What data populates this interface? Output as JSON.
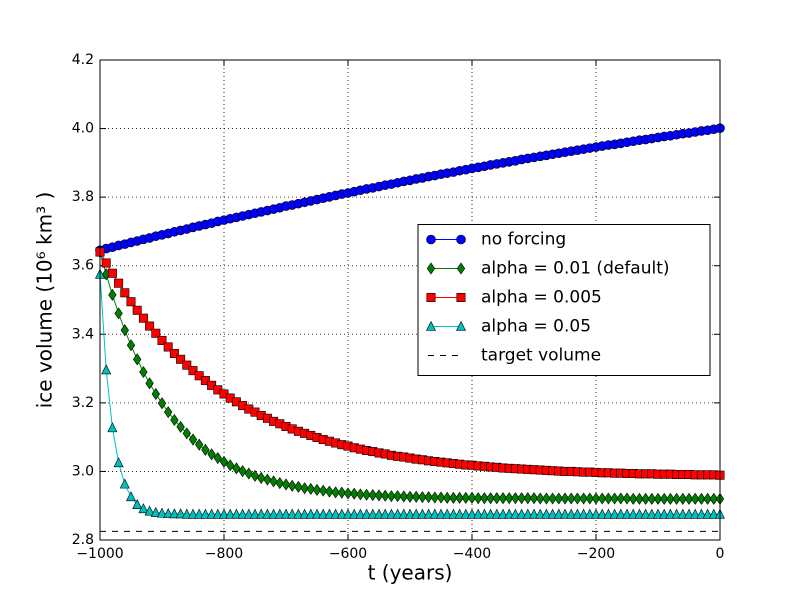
{
  "chart_data": {
    "type": "line",
    "xlabel": "t (years)",
    "ylabel": "ice volume (10⁶  km³ )",
    "xlim": [
      -1000,
      0
    ],
    "ylim": [
      2.8,
      4.2
    ],
    "xticks": [
      {
        "value": -1000,
        "label": "−1000"
      },
      {
        "value": -800,
        "label": "−800"
      },
      {
        "value": -600,
        "label": "−600"
      },
      {
        "value": -400,
        "label": "−400"
      },
      {
        "value": -200,
        "label": "−200"
      },
      0
    ],
    "yticks": [
      2.8,
      {
        "value": 3.0,
        "label": "3.0"
      },
      3.2,
      3.4,
      3.6,
      3.8,
      {
        "value": 4.0,
        "label": "4.0"
      },
      4.2
    ],
    "grid": true,
    "legend": "center right",
    "x": [
      -1000,
      -990,
      -980,
      -970,
      -960,
      -950,
      -940,
      -930,
      -920,
      -910,
      -900,
      -890,
      -880,
      -870,
      -860,
      -850,
      -840,
      -830,
      -820,
      -810,
      -800,
      -790,
      -780,
      -770,
      -760,
      -750,
      -740,
      -730,
      -720,
      -710,
      -700,
      -690,
      -680,
      -670,
      -660,
      -650,
      -640,
      -630,
      -620,
      -610,
      -600,
      -590,
      -580,
      -570,
      -560,
      -550,
      -540,
      -530,
      -520,
      -510,
      -500,
      -490,
      -480,
      -470,
      -460,
      -450,
      -440,
      -430,
      -420,
      -410,
      -400,
      -390,
      -380,
      -370,
      -360,
      -350,
      -340,
      -330,
      -320,
      -310,
      -300,
      -290,
      -280,
      -270,
      -260,
      -250,
      -240,
      -230,
      -220,
      -210,
      -200,
      -190,
      -180,
      -170,
      -160,
      -150,
      -140,
      -130,
      -120,
      -110,
      -100,
      -90,
      -80,
      -70,
      -60,
      -50,
      -40,
      -30,
      -20,
      -10,
      0
    ],
    "series": [
      {
        "name": "no forcing",
        "color": "#0000ff",
        "marker": "o",
        "linestyle": "solid",
        "values": [
          3.645,
          3.65,
          3.654,
          3.659,
          3.663,
          3.668,
          3.672,
          3.677,
          3.681,
          3.686,
          3.69,
          3.694,
          3.699,
          3.703,
          3.707,
          3.712,
          3.716,
          3.72,
          3.724,
          3.729,
          3.733,
          3.737,
          3.741,
          3.745,
          3.749,
          3.753,
          3.757,
          3.761,
          3.765,
          3.769,
          3.774,
          3.777,
          3.781,
          3.785,
          3.789,
          3.793,
          3.797,
          3.801,
          3.805,
          3.809,
          3.812,
          3.816,
          3.82,
          3.824,
          3.827,
          3.831,
          3.835,
          3.838,
          3.842,
          3.846,
          3.849,
          3.853,
          3.856,
          3.86,
          3.863,
          3.867,
          3.87,
          3.873,
          3.877,
          3.88,
          3.884,
          3.887,
          3.89,
          3.894,
          3.897,
          3.9,
          3.903,
          3.906,
          3.91,
          3.913,
          3.916,
          3.919,
          3.922,
          3.925,
          3.928,
          3.931,
          3.934,
          3.937,
          3.94,
          3.943,
          3.946,
          3.949,
          3.952,
          3.954,
          3.957,
          3.96,
          3.963,
          3.966,
          3.968,
          3.971,
          3.974,
          3.977,
          3.979,
          3.982,
          3.985,
          3.987,
          3.99,
          3.993,
          3.995,
          3.998,
          4.001
        ]
      },
      {
        "name": "alpha = 0.01 (default)",
        "color": "#008000",
        "marker": "D",
        "linestyle": "solid",
        "values": [
          3.64,
          3.575,
          3.515,
          3.461,
          3.412,
          3.368,
          3.327,
          3.29,
          3.257,
          3.226,
          3.199,
          3.173,
          3.15,
          3.13,
          3.111,
          3.093,
          3.078,
          3.063,
          3.05,
          3.039,
          3.028,
          3.018,
          3.009,
          3.001,
          2.994,
          2.987,
          2.981,
          2.976,
          2.971,
          2.966,
          2.962,
          2.958,
          2.955,
          2.951,
          2.949,
          2.946,
          2.944,
          2.941,
          2.939,
          2.938,
          2.936,
          2.935,
          2.933,
          2.932,
          2.931,
          2.93,
          2.929,
          2.928,
          2.928,
          2.927,
          2.926,
          2.926,
          2.925,
          2.925,
          2.924,
          2.924,
          2.923,
          2.923,
          2.923,
          2.923,
          2.923,
          2.922,
          2.922,
          2.922,
          2.922,
          2.922,
          2.922,
          2.922,
          2.922,
          2.922,
          2.922,
          2.921,
          2.921,
          2.921,
          2.921,
          2.921,
          2.921,
          2.921,
          2.921,
          2.921,
          2.921,
          2.921,
          2.921,
          2.921,
          2.921,
          2.921,
          2.92,
          2.92,
          2.92,
          2.92,
          2.92,
          2.92,
          2.92,
          2.92,
          2.92,
          2.92,
          2.92,
          2.92,
          2.92,
          2.92,
          2.92
        ]
      },
      {
        "name": "alpha = 0.005",
        "color": "#ff0000",
        "marker": "s",
        "linestyle": "solid",
        "values": [
          3.64,
          3.608,
          3.578,
          3.549,
          3.521,
          3.495,
          3.47,
          3.447,
          3.424,
          3.403,
          3.382,
          3.363,
          3.344,
          3.327,
          3.31,
          3.294,
          3.279,
          3.265,
          3.251,
          3.238,
          3.226,
          3.214,
          3.203,
          3.192,
          3.182,
          3.173,
          3.163,
          3.155,
          3.146,
          3.139,
          3.131,
          3.124,
          3.117,
          3.111,
          3.105,
          3.099,
          3.093,
          3.088,
          3.083,
          3.078,
          3.074,
          3.069,
          3.065,
          3.061,
          3.058,
          3.054,
          3.051,
          3.047,
          3.044,
          3.042,
          3.039,
          3.036,
          3.034,
          3.031,
          3.029,
          3.027,
          3.025,
          3.023,
          3.021,
          3.019,
          3.018,
          3.016,
          3.015,
          3.013,
          3.012,
          3.01,
          3.009,
          3.008,
          3.007,
          3.006,
          3.005,
          3.004,
          3.003,
          3.002,
          3.001,
          3.0,
          3.0,
          2.999,
          2.998,
          2.998,
          2.997,
          2.996,
          2.996,
          2.995,
          2.995,
          2.994,
          2.994,
          2.993,
          2.993,
          2.993,
          2.992,
          2.992,
          2.992,
          2.991,
          2.991,
          2.991,
          2.99,
          2.99,
          2.99,
          2.99,
          2.989
        ]
      },
      {
        "name": "alpha = 0.05",
        "color": "#00bfbf",
        "marker": "^",
        "linestyle": "solid",
        "values": [
          3.575,
          3.296,
          3.127,
          3.025,
          2.963,
          2.926,
          2.903,
          2.891,
          2.884,
          2.88,
          2.878,
          2.877,
          2.876,
          2.876,
          2.875,
          2.875,
          2.875,
          2.875,
          2.875,
          2.875,
          2.875,
          2.875,
          2.875,
          2.875,
          2.875,
          2.875,
          2.875,
          2.875,
          2.875,
          2.875,
          2.875,
          2.875,
          2.875,
          2.875,
          2.875,
          2.875,
          2.875,
          2.875,
          2.875,
          2.875,
          2.875,
          2.875,
          2.875,
          2.875,
          2.875,
          2.875,
          2.875,
          2.875,
          2.875,
          2.875,
          2.875,
          2.875,
          2.875,
          2.875,
          2.875,
          2.875,
          2.875,
          2.875,
          2.875,
          2.875,
          2.875,
          2.875,
          2.875,
          2.875,
          2.875,
          2.875,
          2.875,
          2.875,
          2.875,
          2.875,
          2.875,
          2.875,
          2.875,
          2.875,
          2.875,
          2.875,
          2.875,
          2.875,
          2.875,
          2.875,
          2.875,
          2.875,
          2.875,
          2.875,
          2.875,
          2.875,
          2.875,
          2.875,
          2.875,
          2.875,
          2.875,
          2.875,
          2.875,
          2.875,
          2.875,
          2.875,
          2.875,
          2.875,
          2.875,
          2.875,
          2.875
        ]
      },
      {
        "name": "target volume",
        "color": "#000000",
        "marker": null,
        "linestyle": "dashed",
        "x": [
          -1000,
          0
        ],
        "values": [
          2.825,
          2.825
        ]
      }
    ]
  }
}
